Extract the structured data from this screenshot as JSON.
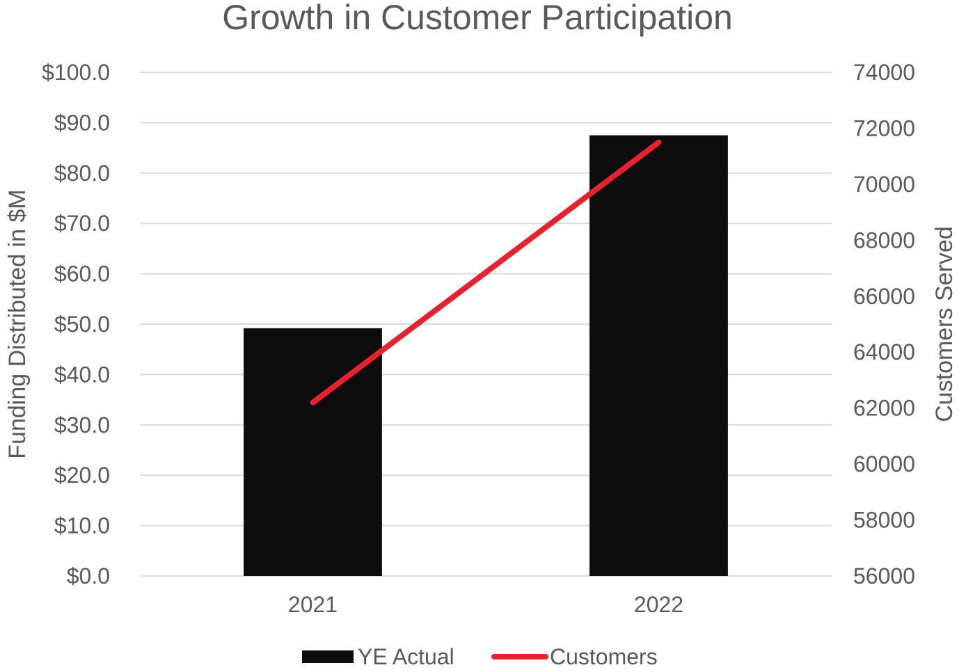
{
  "colors": {
    "bar": "#0d0d0d",
    "line": "#e8202f",
    "grid": "#d9d9d9",
    "text": "#595959"
  },
  "chart_data": {
    "type": "bar",
    "title": "Growth in Customer Participation",
    "categories": [
      "2021",
      "2022"
    ],
    "ylabel": "Funding Distributed in $M",
    "y2label": "Customers Served",
    "ylim": [
      0,
      100
    ],
    "y2lim": [
      56000,
      74000
    ],
    "y_ticks": [
      "$0.0",
      "$10.0",
      "$20.0",
      "$30.0",
      "$40.0",
      "$50.0",
      "$60.0",
      "$70.0",
      "$80.0",
      "$90.0",
      "$100.0"
    ],
    "y2_ticks": [
      "56000",
      "58000",
      "60000",
      "62000",
      "64000",
      "66000",
      "68000",
      "70000",
      "72000",
      "74000"
    ],
    "grid": true,
    "legend_position": "bottom",
    "series": [
      {
        "name": "YE Actual",
        "type": "bar",
        "axis": "left",
        "values": [
          49.2,
          87.5
        ]
      },
      {
        "name": "Customers",
        "type": "line",
        "axis": "right",
        "values": [
          62200,
          71500
        ]
      }
    ]
  }
}
